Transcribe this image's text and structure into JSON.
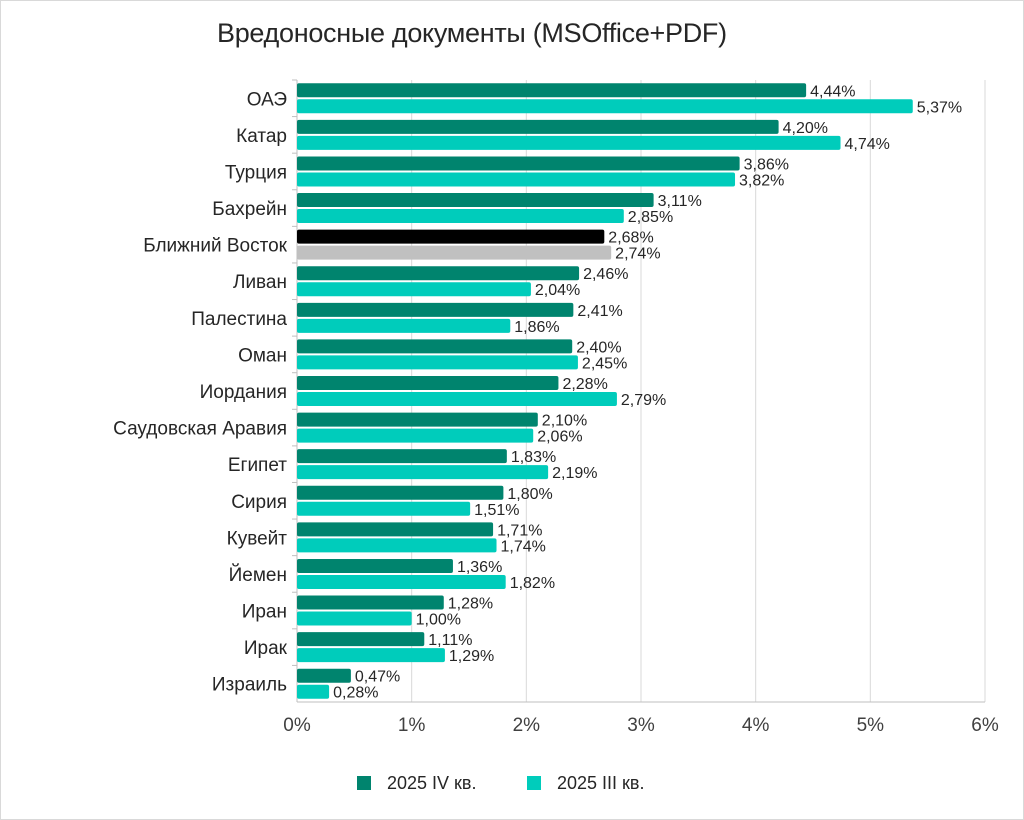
{
  "chart_data": {
    "type": "bar",
    "orientation": "horizontal",
    "title": "Вредоносные документы (MSOffice+PDF)",
    "categories": [
      "ОАЭ",
      "Катар",
      "Турция",
      "Бахрейн",
      "Ближний Восток",
      "Ливан",
      "Палестина",
      "Оман",
      "Иордания",
      "Саудовская Аравия",
      "Египет",
      "Сирия",
      "Кувейт",
      "Йемен",
      "Иран",
      "Ирак",
      "Израиль"
    ],
    "series": [
      {
        "name": "2025 IV кв.",
        "color": "#00846e",
        "values": [
          4.44,
          4.2,
          3.86,
          3.11,
          2.68,
          2.46,
          2.41,
          2.4,
          2.28,
          2.1,
          1.83,
          1.8,
          1.71,
          1.36,
          1.28,
          1.11,
          0.47
        ],
        "labels": [
          "4,44%",
          "4,20%",
          "3,86%",
          "3,11%",
          "2,68%",
          "2,46%",
          "2,41%",
          "2,40%",
          "2,28%",
          "2,10%",
          "1,83%",
          "1,80%",
          "1,71%",
          "1,36%",
          "1,28%",
          "1,11%",
          "0,47%"
        ]
      },
      {
        "name": "2025 III кв.",
        "color": "#00ccbb",
        "values": [
          5.37,
          4.74,
          3.82,
          2.85,
          2.74,
          2.04,
          1.86,
          2.45,
          2.79,
          2.06,
          2.19,
          1.51,
          1.74,
          1.82,
          1.0,
          1.29,
          0.28
        ],
        "labels": [
          "5,37%",
          "4,74%",
          "3,82%",
          "2,85%",
          "2,74%",
          "2,04%",
          "1,86%",
          "2,45%",
          "2,79%",
          "2,06%",
          "2,19%",
          "1,51%",
          "1,74%",
          "1,82%",
          "1,00%",
          "1,29%",
          "0,28%"
        ]
      }
    ],
    "highlight": {
      "category": "Ближний Восток",
      "colors": [
        "#000000",
        "#c0c0c0"
      ]
    },
    "xlim": [
      0,
      6
    ],
    "x_ticks": [
      "0%",
      "1%",
      "2%",
      "3%",
      "4%",
      "5%",
      "6%"
    ],
    "grid": true,
    "legend_position": "bottom"
  }
}
